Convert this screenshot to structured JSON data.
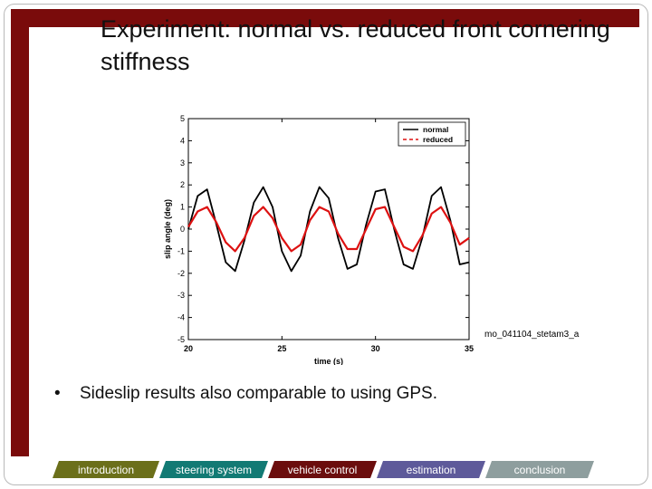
{
  "slide": {
    "title": "Experiment: normal vs. reduced front cornering stiffness",
    "bullet": "Sideslip results also comparable to using GPS.",
    "figure_caption": "mo_041104_stetam3_a"
  },
  "nav": [
    {
      "label": "introduction",
      "color": "#6b6f1a"
    },
    {
      "label": "steering system",
      "color": "#127a74"
    },
    {
      "label": "vehicle control",
      "color": "#6b0d0d"
    },
    {
      "label": "estimation",
      "color": "#5e5a9a"
    },
    {
      "label": "conclusion",
      "color": "#8e9e9e"
    }
  ],
  "chart_data": {
    "type": "line",
    "xlabel": "time (s)",
    "ylabel": "slip angle (deg)",
    "xlim": [
      20,
      35
    ],
    "ylim": [
      -5,
      5
    ],
    "xticks": [
      20,
      25,
      30,
      35
    ],
    "yticks": [
      -5,
      -4,
      -3,
      -2,
      -1,
      0,
      1,
      2,
      3,
      4,
      5
    ],
    "legend_position": "top-right",
    "series": [
      {
        "name": "normal",
        "color": "#000000",
        "dash": "solid",
        "x": [
          20.0,
          20.5,
          21.0,
          21.5,
          22.0,
          22.5,
          23.0,
          23.5,
          24.0,
          24.5,
          25.0,
          25.5,
          26.0,
          26.5,
          27.0,
          27.5,
          28.0,
          28.5,
          29.0,
          29.5,
          30.0,
          30.5,
          31.0,
          31.5,
          32.0,
          32.5,
          33.0,
          33.5,
          34.0,
          34.5,
          35.0
        ],
        "y": [
          0.0,
          1.5,
          1.8,
          0.2,
          -1.5,
          -1.9,
          -0.5,
          1.2,
          1.9,
          1.0,
          -1.0,
          -1.9,
          -1.2,
          0.8,
          1.9,
          1.4,
          -0.4,
          -1.8,
          -1.6,
          0.2,
          1.7,
          1.8,
          0.0,
          -1.6,
          -1.8,
          -0.4,
          1.5,
          1.9,
          0.4,
          -1.6,
          -1.5
        ]
      },
      {
        "name": "reduced",
        "color": "#dd1111",
        "dash": "dashed",
        "x": [
          20.0,
          20.5,
          21.0,
          21.5,
          22.0,
          22.5,
          23.0,
          23.5,
          24.0,
          24.5,
          25.0,
          25.5,
          26.0,
          26.5,
          27.0,
          27.5,
          28.0,
          28.5,
          29.0,
          29.5,
          30.0,
          30.5,
          31.0,
          31.5,
          32.0,
          32.5,
          33.0,
          33.5,
          34.0,
          34.5,
          35.0
        ],
        "y": [
          0.1,
          0.8,
          1.0,
          0.3,
          -0.6,
          -1.0,
          -0.4,
          0.6,
          1.0,
          0.5,
          -0.4,
          -1.0,
          -0.7,
          0.4,
          1.0,
          0.8,
          -0.2,
          -0.9,
          -0.9,
          0.0,
          0.9,
          1.0,
          0.1,
          -0.8,
          -1.0,
          -0.3,
          0.7,
          1.0,
          0.3,
          -0.7,
          -0.4
        ]
      }
    ]
  }
}
